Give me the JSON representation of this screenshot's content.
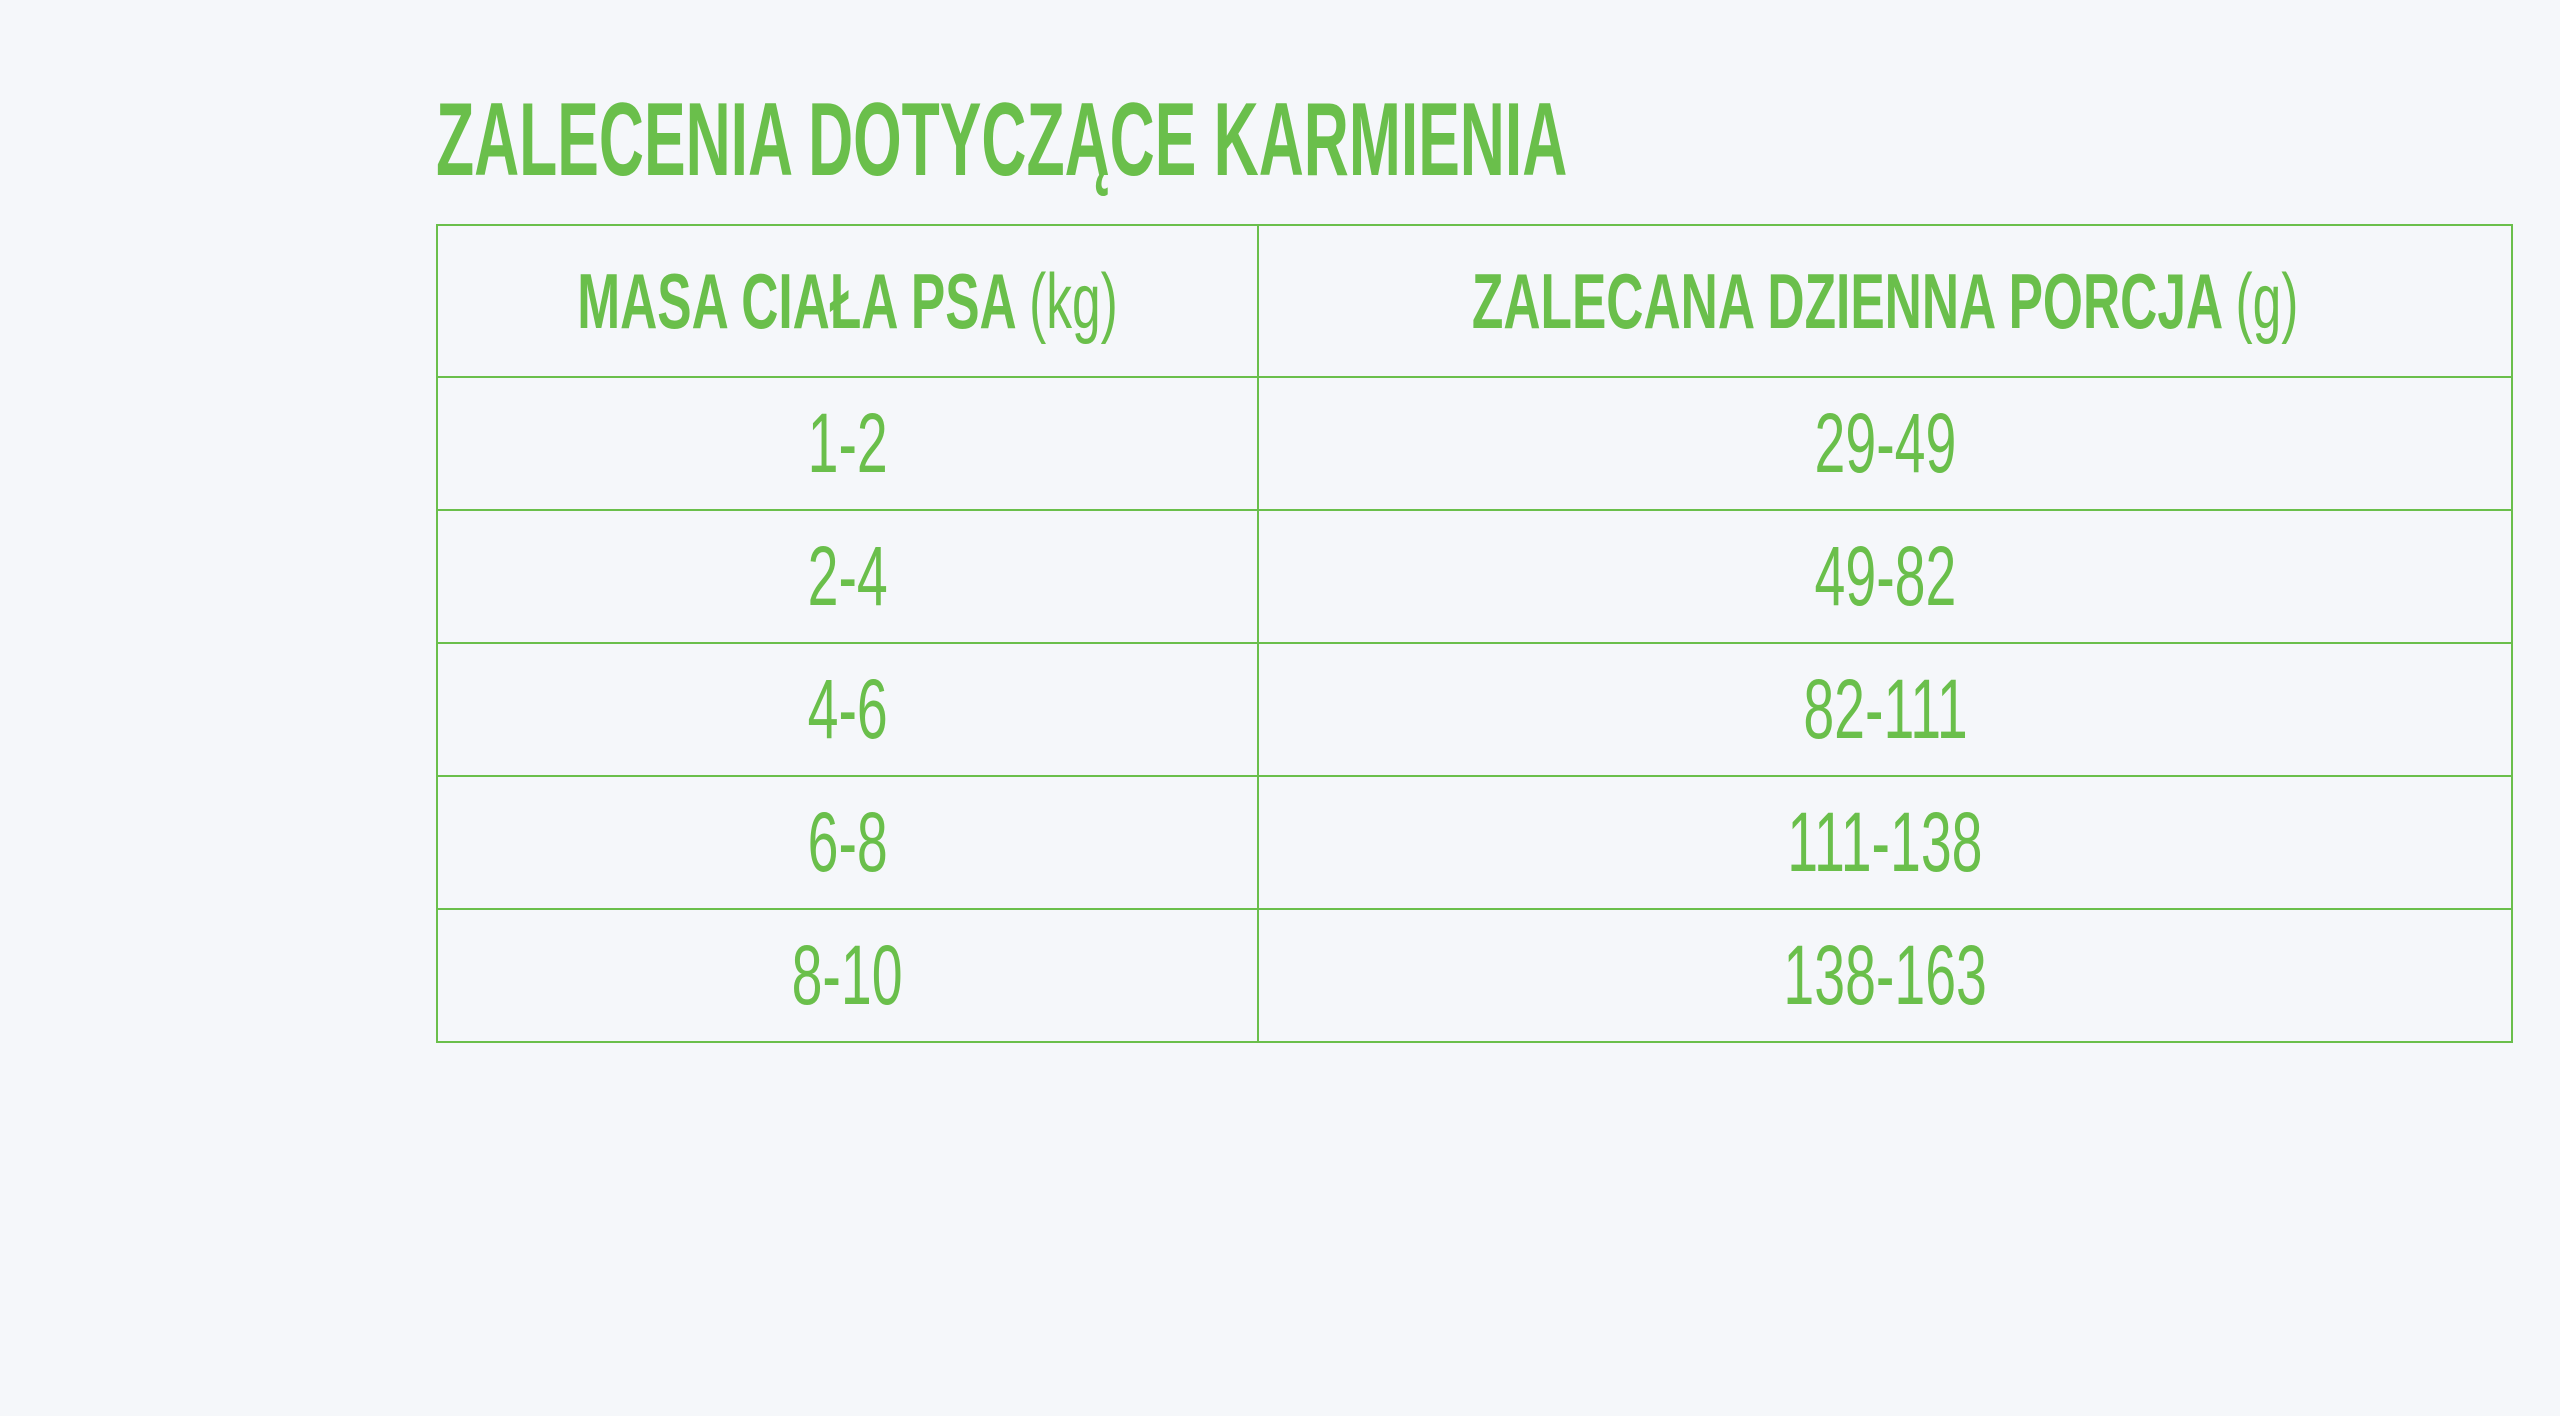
{
  "header": {
    "title": "ZALECENIA DOTYCZĄCE KARMIENIA"
  },
  "table": {
    "columns": [
      {
        "label": "MASA CIAŁA PSA",
        "unit": "(kg)"
      },
      {
        "label": "ZALECANA DZIENNA PORCJA",
        "unit": "(g)"
      }
    ],
    "rows": [
      [
        "1-2",
        "29-49"
      ],
      [
        "2-4",
        "49-82"
      ],
      [
        "4-6",
        "82-111"
      ],
      [
        "6-8",
        "111-138"
      ],
      [
        "8-10",
        "138-163"
      ]
    ]
  }
}
